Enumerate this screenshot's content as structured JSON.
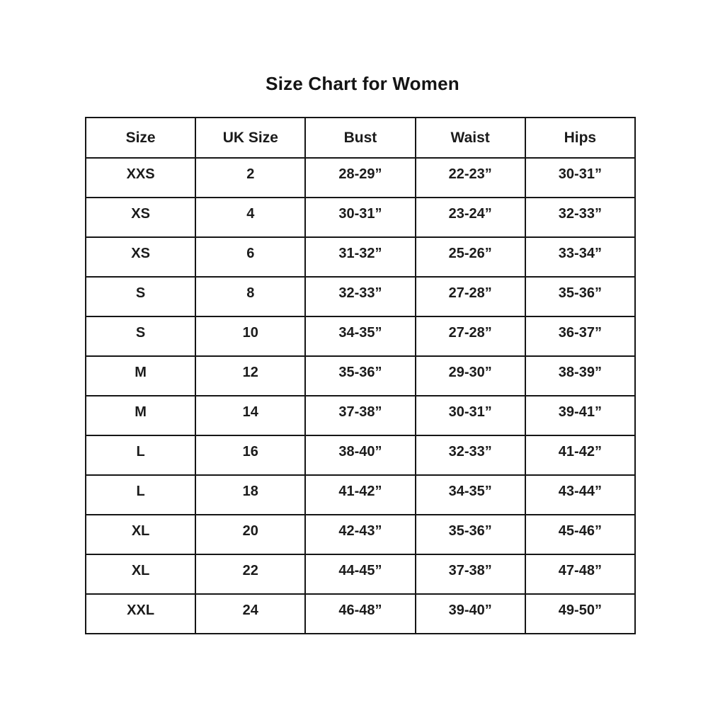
{
  "title": "Size Chart for Women",
  "chart_data": {
    "type": "table",
    "title": "Size Chart for Women",
    "columns": [
      "Size",
      "UK Size",
      "Bust",
      "Waist",
      "Hips"
    ],
    "rows": [
      [
        "XXS",
        "2",
        "28-29”",
        "22-23”",
        "30-31”"
      ],
      [
        "XS",
        "4",
        "30-31”",
        "23-24”",
        "32-33”"
      ],
      [
        "XS",
        "6",
        "31-32”",
        "25-26”",
        "33-34”"
      ],
      [
        "S",
        "8",
        "32-33”",
        "27-28”",
        "35-36”"
      ],
      [
        "S",
        "10",
        "34-35”",
        "27-28”",
        "36-37”"
      ],
      [
        "M",
        "12",
        "35-36”",
        "29-30”",
        "38-39”"
      ],
      [
        "M",
        "14",
        "37-38”",
        "30-31”",
        "39-41”"
      ],
      [
        "L",
        "16",
        "38-40”",
        "32-33”",
        "41-42”"
      ],
      [
        "L",
        "18",
        "41-42”",
        "34-35”",
        "43-44”"
      ],
      [
        "XL",
        "20",
        "42-43”",
        "35-36”",
        "45-46”"
      ],
      [
        "XL",
        "22",
        "44-45”",
        "37-38”",
        "47-48”"
      ],
      [
        "XXL",
        "24",
        "46-48”",
        "39-40”",
        "49-50”"
      ]
    ],
    "text_color": "#1a1a1a",
    "border_color": "#161616",
    "background_color": "#ffffff"
  }
}
